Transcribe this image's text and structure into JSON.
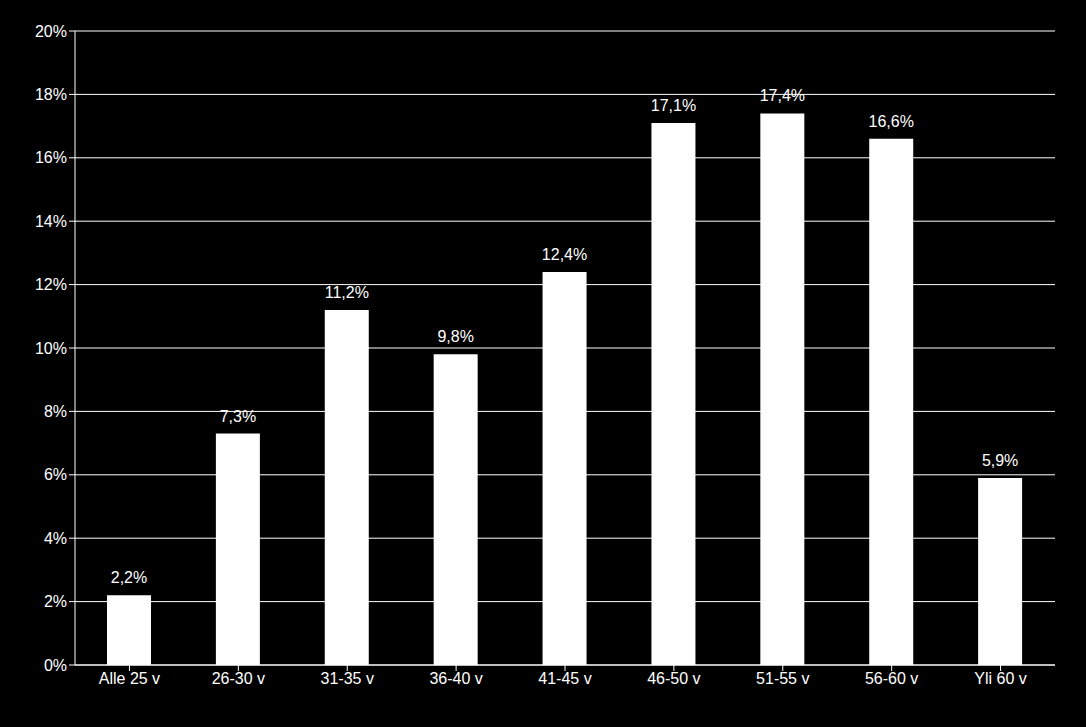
{
  "chart_data": {
    "type": "bar",
    "categories": [
      "Alle 25 v",
      "26-30 v",
      "31-35 v",
      "36-40 v",
      "41-45 v",
      "46-50 v",
      "51-55 v",
      "56-60 v",
      "Yli 60 v"
    ],
    "values": [
      2.2,
      7.3,
      11.2,
      9.8,
      12.4,
      17.1,
      17.4,
      16.6,
      5.9
    ],
    "value_labels": [
      "2,2%",
      "7,3%",
      "11,2%",
      "9,8%",
      "12,4%",
      "17,1%",
      "17,4%",
      "16,6%",
      "5,9%"
    ],
    "color": "#ffffff",
    "ylim": [
      0,
      20
    ],
    "yticks": [
      {
        "value": 0,
        "label": "0%"
      },
      {
        "value": 2,
        "label": "2%"
      },
      {
        "value": 4,
        "label": "4%"
      },
      {
        "value": 6,
        "label": "6%"
      },
      {
        "value": 8,
        "label": "8%"
      },
      {
        "value": 10,
        "label": "10%"
      },
      {
        "value": 12,
        "label": "12%"
      },
      {
        "value": 14,
        "label": "14%"
      },
      {
        "value": 16,
        "label": "16%"
      },
      {
        "value": 18,
        "label": "18%"
      },
      {
        "value": 20,
        "label": "20%"
      }
    ],
    "grid": true,
    "data_labels": true
  }
}
